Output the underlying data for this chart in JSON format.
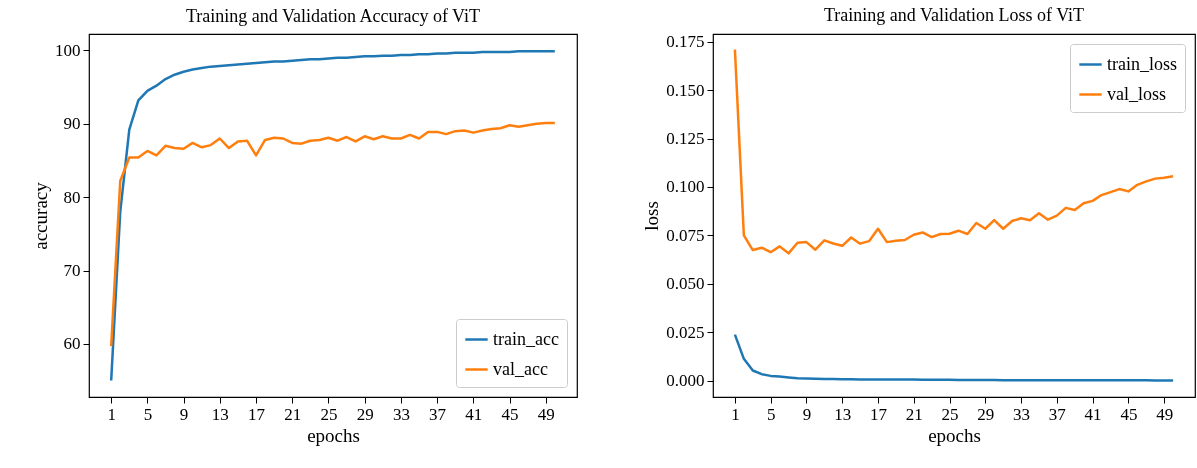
{
  "chart_data": [
    {
      "type": "line",
      "title": "Training and Validation Accuracy of ViT",
      "xlabel": "epochs",
      "ylabel": "accuracy",
      "x": [
        1,
        2,
        3,
        4,
        5,
        6,
        7,
        8,
        9,
        10,
        11,
        12,
        13,
        14,
        15,
        16,
        17,
        18,
        19,
        20,
        21,
        22,
        23,
        24,
        25,
        26,
        27,
        28,
        29,
        30,
        31,
        32,
        33,
        34,
        35,
        36,
        37,
        38,
        39,
        40,
        41,
        42,
        43,
        44,
        45,
        46,
        47,
        48,
        49,
        50
      ],
      "xlim": [
        -1.45,
        52.45
      ],
      "xticks": [
        1,
        5,
        9,
        13,
        17,
        21,
        25,
        29,
        33,
        37,
        41,
        45,
        49
      ],
      "ylim": [
        52.75,
        102.25
      ],
      "yticks": [
        60,
        70,
        80,
        90,
        100
      ],
      "legend": "bottom right",
      "series": [
        {
          "name": "train_acc",
          "color": "#1f77b4",
          "values": [
            55.0,
            78.0,
            89.2,
            93.2,
            94.5,
            95.2,
            96.1,
            96.7,
            97.1,
            97.4,
            97.6,
            97.8,
            97.9,
            98.0,
            98.1,
            98.2,
            98.3,
            98.4,
            98.5,
            98.5,
            98.6,
            98.7,
            98.8,
            98.8,
            98.9,
            99.0,
            99.0,
            99.1,
            99.2,
            99.2,
            99.3,
            99.3,
            99.4,
            99.4,
            99.5,
            99.5,
            99.6,
            99.6,
            99.7,
            99.7,
            99.7,
            99.8,
            99.8,
            99.8,
            99.8,
            99.9,
            99.9,
            99.9,
            99.9,
            99.9
          ]
        },
        {
          "name": "val_acc",
          "color": "#ff7f0e",
          "values": [
            59.7,
            82.2,
            85.4,
            85.4,
            86.3,
            85.7,
            87.0,
            86.7,
            86.6,
            87.4,
            86.8,
            87.1,
            88.0,
            86.7,
            87.6,
            87.7,
            85.7,
            87.8,
            88.1,
            88.0,
            87.4,
            87.3,
            87.7,
            87.8,
            88.1,
            87.7,
            88.2,
            87.6,
            88.3,
            87.9,
            88.3,
            88.0,
            88.0,
            88.5,
            88.0,
            88.9,
            88.9,
            88.6,
            89.0,
            89.1,
            88.8,
            89.1,
            89.3,
            89.4,
            89.8,
            89.6,
            89.8,
            90.0,
            90.1,
            90.1
          ]
        }
      ]
    },
    {
      "type": "line",
      "title": "Training and Validation Loss of ViT",
      "xlabel": "epochs",
      "ylabel": "loss",
      "x": [
        1,
        2,
        3,
        4,
        5,
        6,
        7,
        8,
        9,
        10,
        11,
        12,
        13,
        14,
        15,
        16,
        17,
        18,
        19,
        20,
        21,
        22,
        23,
        24,
        25,
        26,
        27,
        28,
        29,
        30,
        31,
        32,
        33,
        34,
        35,
        36,
        37,
        38,
        39,
        40,
        41,
        42,
        43,
        44,
        45,
        46,
        47,
        48,
        49,
        50
      ],
      "xlim": [
        -1.45,
        52.45
      ],
      "xticks": [
        1,
        5,
        9,
        13,
        17,
        21,
        25,
        29,
        33,
        37,
        41,
        45,
        49
      ],
      "ylim": [
        -0.0085,
        0.179
      ],
      "yticks": [
        {
          "value": 0,
          "label": "0.000"
        },
        {
          "value": 0.025,
          "label": "0.025"
        },
        {
          "value": 0.05,
          "label": "0.050"
        },
        {
          "value": 0.075,
          "label": "0.075"
        },
        {
          "value": 0.1,
          "label": "0.100"
        },
        {
          "value": 0.125,
          "label": "0.125"
        },
        {
          "value": 0.15,
          "label": "0.150"
        },
        {
          "value": 0.175,
          "label": "0.175"
        }
      ],
      "legend": "top right",
      "series": [
        {
          "name": "train_loss",
          "color": "#1f77b4",
          "values": [
            0.0237,
            0.0112,
            0.0052,
            0.0033,
            0.0024,
            0.0021,
            0.0016,
            0.0012,
            0.001,
            0.0009,
            0.0008,
            0.0008,
            0.0007,
            0.0007,
            0.0006,
            0.0006,
            0.0006,
            0.0005,
            0.0005,
            0.0005,
            0.0005,
            0.0004,
            0.0004,
            0.0004,
            0.0004,
            0.0003,
            0.0003,
            0.0003,
            0.0003,
            0.0003,
            0.0002,
            0.0002,
            0.0002,
            0.0002,
            0.0002,
            0.0002,
            0.0002,
            0.0001,
            0.0001,
            0.0001,
            0.0001,
            0.0001,
            0.0001,
            0.0001,
            0.0001,
            0.0001,
            0.0001,
            0.0,
            0.0,
            0.0
          ]
        },
        {
          "name": "val_loss",
          "color": "#ff7f0e",
          "values": [
            0.171,
            0.075,
            0.0674,
            0.0686,
            0.0663,
            0.0693,
            0.0657,
            0.0712,
            0.0715,
            0.0676,
            0.0724,
            0.0708,
            0.0696,
            0.0739,
            0.0707,
            0.072,
            0.0784,
            0.0715,
            0.0722,
            0.0726,
            0.0753,
            0.0765,
            0.0741,
            0.0757,
            0.0758,
            0.0774,
            0.0757,
            0.0814,
            0.0784,
            0.0829,
            0.0784,
            0.0824,
            0.0838,
            0.0828,
            0.0864,
            0.0831,
            0.0852,
            0.0892,
            0.0881,
            0.0916,
            0.0928,
            0.0958,
            0.0973,
            0.0989,
            0.0977,
            0.1011,
            0.1029,
            0.1043,
            0.1048,
            0.1055
          ]
        }
      ]
    }
  ]
}
